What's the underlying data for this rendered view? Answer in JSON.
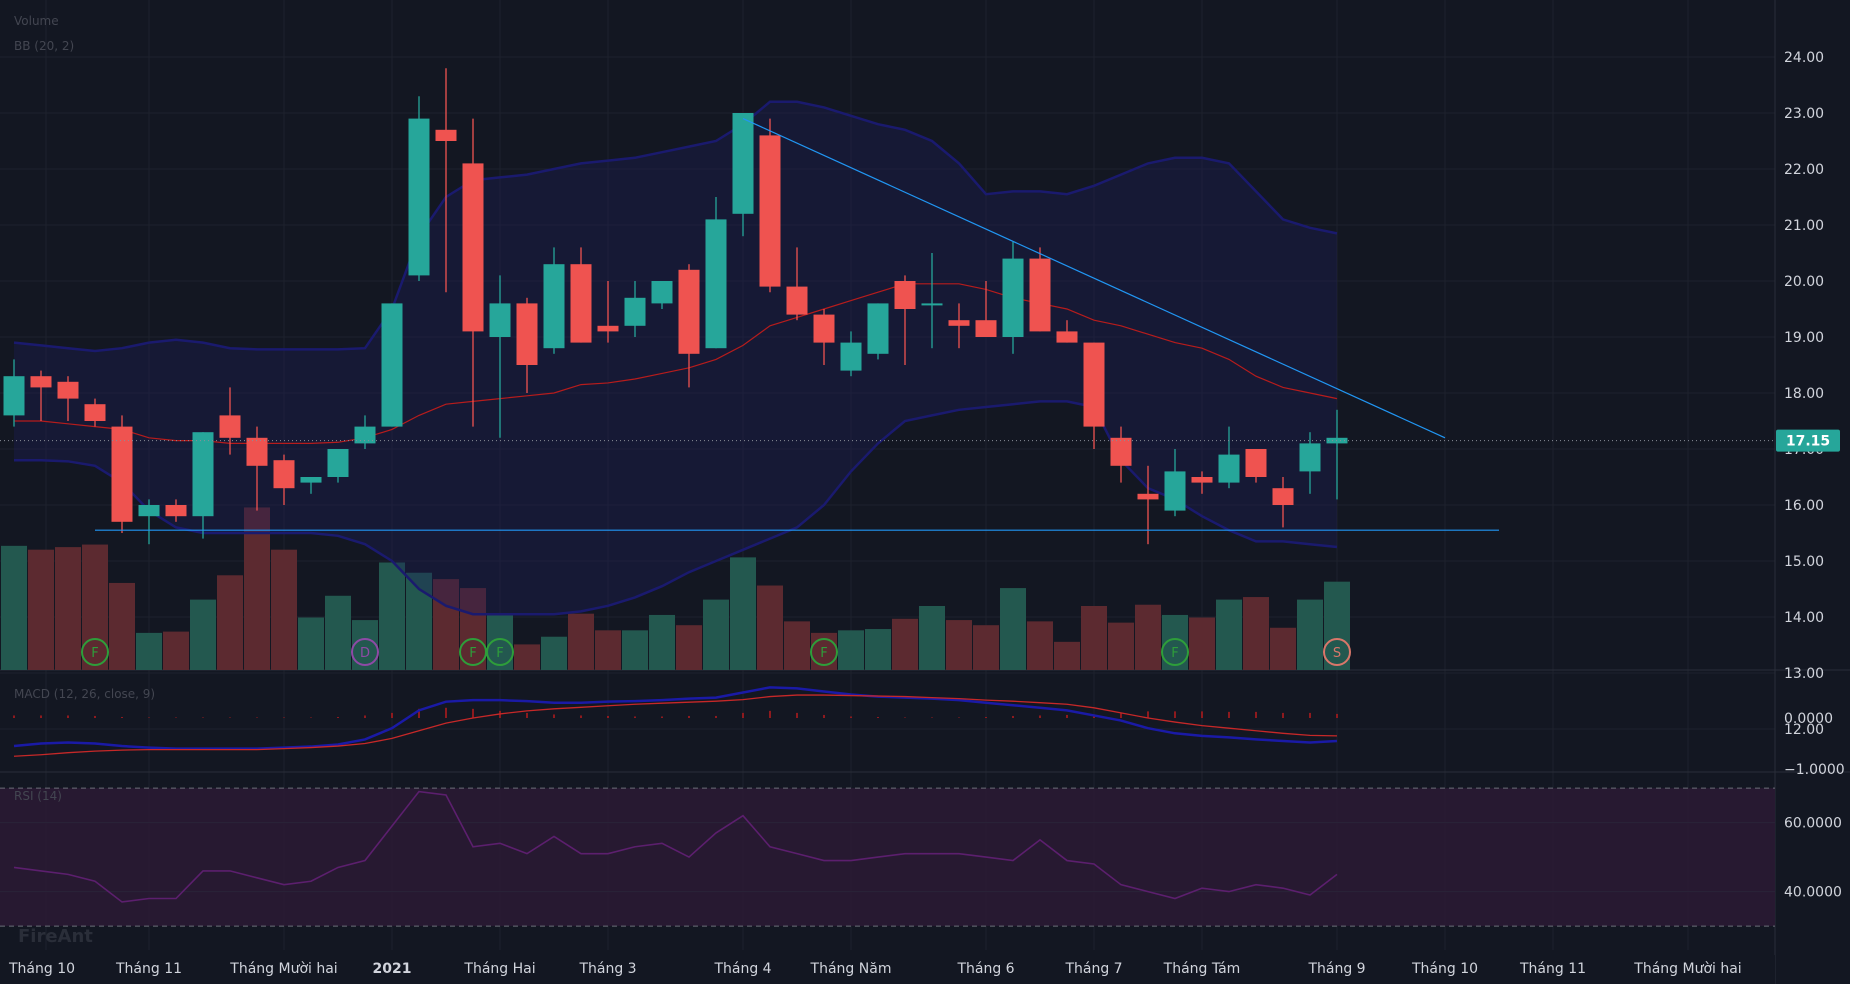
{
  "app": {
    "watermark": "FireAnt"
  },
  "indicators": {
    "volume_label": "Volume",
    "bb_label": "BB (20, 2)",
    "macd_label": "MACD (12, 26, close, 9)",
    "rsi_label": "RSI (14)"
  },
  "colors": {
    "background": "#131722",
    "grid": "#1e222d",
    "up": "#26a69a",
    "down": "#ef5350",
    "bb_band": "#1a1a6e",
    "bb_mid": "#b71c1c",
    "trendline": "#2196f3",
    "macd": "#1a1aa6",
    "signal": "#c62828",
    "rsi_line": "#5c1f6e",
    "rsi_zone": "#2a1933",
    "last_price_bg": "#26a69a"
  },
  "price_axis": {
    "ticks": [
      "24.00",
      "23.00",
      "22.00",
      "21.00",
      "20.00",
      "19.00",
      "18.00",
      "17.00",
      "16.00",
      "15.00",
      "14.00",
      "13.00",
      "12.00"
    ]
  },
  "last_price": {
    "label": "17.15",
    "value": 17.15
  },
  "macd_axis": {
    "ticks": [
      "0.0000",
      "−1.0000"
    ]
  },
  "rsi_axis": {
    "ticks": [
      "60.0000",
      "40.0000"
    ]
  },
  "time_axis": {
    "labels": [
      "Tháng 10",
      "Tháng 11",
      "Tháng Mười hai",
      "2021",
      "Tháng Hai",
      "Tháng 3",
      "Tháng 4",
      "Tháng Năm",
      "Tháng 6",
      "Tháng 7",
      "Tháng Tám",
      "Tháng 9",
      "Tháng 10",
      "Tháng 11",
      "Tháng Mười hai"
    ]
  },
  "markers": [
    {
      "bar": 3,
      "letter": "F",
      "kind": "F"
    },
    {
      "bar": 13,
      "letter": "D",
      "kind": "D"
    },
    {
      "bar": 17,
      "letter": "F",
      "kind": "F"
    },
    {
      "bar": 18,
      "letter": "F",
      "kind": "F"
    },
    {
      "bar": 30,
      "letter": "F",
      "kind": "F"
    },
    {
      "bar": 43,
      "letter": "F",
      "kind": "F"
    },
    {
      "bar": 49,
      "letter": "S",
      "kind": "S"
    }
  ],
  "chart_data": {
    "type": "candlestick",
    "interval": "weekly",
    "ylim": [
      12,
      24.6
    ],
    "ohlc": [
      [
        17.6,
        18.6,
        17.4,
        18.3
      ],
      [
        18.3,
        18.4,
        17.5,
        18.1
      ],
      [
        18.2,
        18.3,
        17.5,
        17.9
      ],
      [
        17.8,
        17.9,
        17.4,
        17.5
      ],
      [
        17.4,
        17.6,
        15.5,
        15.7
      ],
      [
        15.8,
        16.1,
        15.3,
        16.0
      ],
      [
        16.0,
        16.1,
        15.7,
        15.8
      ],
      [
        15.8,
        17.3,
        15.4,
        17.3
      ],
      [
        17.6,
        18.1,
        16.9,
        17.2
      ],
      [
        17.2,
        17.4,
        15.9,
        16.7
      ],
      [
        16.8,
        16.9,
        16.0,
        16.3
      ],
      [
        16.4,
        16.5,
        16.2,
        16.5
      ],
      [
        16.5,
        17.0,
        16.4,
        17.0
      ],
      [
        17.1,
        17.6,
        17.0,
        17.4
      ],
      [
        17.4,
        19.6,
        17.4,
        19.6
      ],
      [
        20.1,
        23.3,
        20.0,
        22.9
      ],
      [
        22.7,
        23.8,
        19.8,
        22.5
      ],
      [
        22.1,
        22.9,
        17.4,
        19.1
      ],
      [
        19.0,
        20.1,
        17.2,
        19.6
      ],
      [
        19.6,
        19.7,
        18.0,
        18.5
      ],
      [
        18.8,
        20.6,
        18.7,
        20.3
      ],
      [
        20.3,
        20.6,
        18.9,
        18.9
      ],
      [
        19.2,
        20.0,
        18.9,
        19.1
      ],
      [
        19.2,
        20.0,
        19.0,
        19.7
      ],
      [
        19.6,
        20.0,
        19.5,
        20.0
      ],
      [
        20.2,
        20.3,
        18.1,
        18.7
      ],
      [
        18.8,
        21.5,
        18.8,
        21.1
      ],
      [
        21.2,
        23.0,
        20.8,
        23.0
      ],
      [
        22.6,
        22.9,
        19.8,
        19.9
      ],
      [
        19.9,
        20.6,
        19.3,
        19.4
      ],
      [
        19.4,
        19.5,
        18.5,
        18.9
      ],
      [
        18.4,
        19.1,
        18.3,
        18.9
      ],
      [
        18.7,
        19.6,
        18.6,
        19.6
      ],
      [
        20.0,
        20.1,
        18.5,
        19.5
      ],
      [
        19.6,
        20.5,
        18.8,
        19.6
      ],
      [
        19.3,
        19.6,
        18.8,
        19.2
      ],
      [
        19.3,
        20.0,
        19.0,
        19.0
      ],
      [
        19.0,
        20.7,
        18.7,
        20.4
      ],
      [
        20.4,
        20.6,
        19.1,
        19.1
      ],
      [
        19.1,
        19.3,
        18.9,
        18.9
      ],
      [
        18.9,
        18.9,
        17.0,
        17.4
      ],
      [
        17.2,
        17.4,
        16.4,
        16.7
      ],
      [
        16.2,
        16.7,
        15.3,
        16.1
      ],
      [
        15.9,
        17.0,
        15.8,
        16.6
      ],
      [
        16.5,
        16.6,
        16.2,
        16.4
      ],
      [
        16.4,
        17.4,
        16.3,
        16.9
      ],
      [
        17.0,
        17.0,
        16.4,
        16.5
      ],
      [
        16.3,
        16.5,
        15.6,
        16.0
      ],
      [
        16.6,
        17.3,
        16.2,
        17.1
      ],
      [
        17.1,
        17.7,
        16.1,
        17.2
      ]
    ],
    "volume": [
      0.97,
      0.94,
      0.96,
      0.98,
      0.68,
      0.29,
      0.3,
      0.55,
      0.74,
      1.27,
      0.94,
      0.41,
      0.58,
      0.39,
      0.84,
      0.76,
      0.71,
      0.64,
      0.43,
      0.2,
      0.26,
      0.44,
      0.31,
      0.31,
      0.43,
      0.35,
      0.55,
      0.88,
      0.66,
      0.38,
      0.29,
      0.31,
      0.32,
      0.4,
      0.5,
      0.39,
      0.35,
      0.64,
      0.38,
      0.22,
      0.5,
      0.37,
      0.51,
      0.43,
      0.41,
      0.55,
      0.57,
      0.33,
      0.55,
      0.69
    ],
    "bollinger": {
      "upper": [
        18.9,
        18.85,
        18.8,
        18.75,
        18.8,
        18.9,
        18.95,
        18.9,
        18.8,
        18.78,
        18.78,
        18.78,
        18.78,
        18.8,
        19.5,
        20.8,
        21.5,
        21.8,
        21.85,
        21.9,
        22.0,
        22.1,
        22.15,
        22.2,
        22.3,
        22.4,
        22.5,
        22.8,
        23.2,
        23.2,
        23.1,
        22.95,
        22.8,
        22.7,
        22.5,
        22.1,
        21.55,
        21.6,
        21.6,
        21.55,
        21.7,
        21.9,
        22.1,
        22.2,
        22.2,
        22.1,
        21.6,
        21.1,
        20.95,
        20.85
      ],
      "middle": [
        17.5,
        17.5,
        17.45,
        17.4,
        17.35,
        17.2,
        17.15,
        17.15,
        17.1,
        17.1,
        17.1,
        17.1,
        17.12,
        17.2,
        17.35,
        17.6,
        17.8,
        17.85,
        17.9,
        17.95,
        18.0,
        18.15,
        18.18,
        18.25,
        18.35,
        18.45,
        18.6,
        18.85,
        19.2,
        19.35,
        19.5,
        19.65,
        19.8,
        19.95,
        19.95,
        19.95,
        19.85,
        19.7,
        19.6,
        19.5,
        19.3,
        19.2,
        19.05,
        18.9,
        18.8,
        18.6,
        18.3,
        18.1,
        18.0,
        17.9
      ],
      "lower": [
        16.8,
        16.8,
        16.78,
        16.7,
        16.4,
        15.9,
        15.6,
        15.5,
        15.5,
        15.5,
        15.5,
        15.5,
        15.45,
        15.3,
        15.0,
        14.5,
        14.2,
        14.05,
        14.05,
        14.05,
        14.05,
        14.1,
        14.2,
        14.35,
        14.55,
        14.8,
        15.0,
        15.2,
        15.4,
        15.6,
        16.0,
        16.6,
        17.1,
        17.5,
        17.6,
        17.7,
        17.75,
        17.8,
        17.85,
        17.85,
        17.75,
        16.8,
        16.3,
        16.1,
        15.8,
        15.55,
        15.35,
        15.35,
        15.3,
        15.25
      ]
    },
    "trendlines": [
      {
        "type": "diagonal",
        "from": [
          27,
          22.9
        ],
        "to": [
          53,
          17.2
        ]
      },
      {
        "type": "horizontal",
        "from": [
          3,
          15.55
        ],
        "to": [
          55,
          15.55
        ]
      }
    ],
    "macd": {
      "ylim": [
        -1.0,
        0.5
      ],
      "macd": [
        -0.55,
        -0.5,
        -0.48,
        -0.5,
        -0.55,
        -0.58,
        -0.6,
        -0.6,
        -0.6,
        -0.6,
        -0.58,
        -0.56,
        -0.52,
        -0.42,
        -0.2,
        0.15,
        0.32,
        0.35,
        0.35,
        0.33,
        0.3,
        0.3,
        0.32,
        0.33,
        0.35,
        0.38,
        0.4,
        0.5,
        0.6,
        0.58,
        0.52,
        0.46,
        0.42,
        0.4,
        0.38,
        0.35,
        0.3,
        0.25,
        0.2,
        0.15,
        0.05,
        -0.05,
        -0.2,
        -0.3,
        -0.35,
        -0.38,
        -0.42,
        -0.45,
        -0.48,
        -0.45
      ],
      "signal": [
        -0.75,
        -0.72,
        -0.68,
        -0.65,
        -0.63,
        -0.62,
        -0.62,
        -0.62,
        -0.62,
        -0.62,
        -0.6,
        -0.58,
        -0.55,
        -0.5,
        -0.4,
        -0.25,
        -0.1,
        0.0,
        0.08,
        0.14,
        0.18,
        0.21,
        0.24,
        0.27,
        0.29,
        0.31,
        0.33,
        0.36,
        0.42,
        0.45,
        0.45,
        0.44,
        0.43,
        0.42,
        0.4,
        0.38,
        0.35,
        0.33,
        0.3,
        0.27,
        0.2,
        0.1,
        0.0,
        -0.08,
        -0.15,
        -0.2,
        -0.25,
        -0.3,
        -0.34,
        -0.35
      ],
      "histogram": [
        0.05,
        0.05,
        0.05,
        0.04,
        0.02,
        0.01,
        0.01,
        0.01,
        0.01,
        0.01,
        0.01,
        0.01,
        0.02,
        0.05,
        0.1,
        0.18,
        0.2,
        0.18,
        0.14,
        0.1,
        0.07,
        0.05,
        0.04,
        0.03,
        0.03,
        0.04,
        0.04,
        0.1,
        0.14,
        0.1,
        0.06,
        0.03,
        0.02,
        0.01,
        0.01,
        0.01,
        0.02,
        0.04,
        0.05,
        0.06,
        0.07,
        0.1,
        0.13,
        0.13,
        0.13,
        0.12,
        0.12,
        0.1,
        0.1,
        0.08
      ]
    },
    "rsi": {
      "ylim": [
        28,
        72
      ],
      "bands": [
        70,
        30
      ],
      "values": [
        47,
        46,
        45,
        43,
        37,
        38,
        38,
        46,
        46,
        44,
        42,
        43,
        47,
        49,
        59,
        69,
        68,
        53,
        54,
        51,
        56,
        51,
        51,
        53,
        54,
        50,
        57,
        62,
        53,
        51,
        49,
        49,
        50,
        51,
        51,
        51,
        50,
        49,
        55,
        49,
        48,
        42,
        40,
        38,
        41,
        40,
        42,
        41,
        39,
        45
      ]
    }
  }
}
